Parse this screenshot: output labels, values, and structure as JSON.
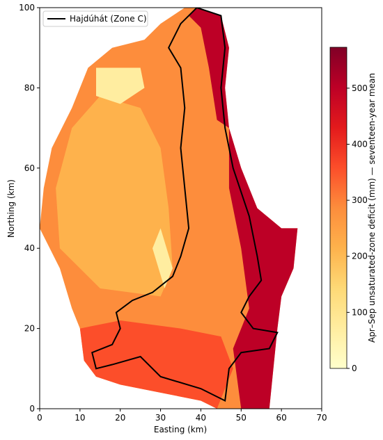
{
  "chart_data": {
    "type": "heatmap",
    "xlabel": "Easting (km)",
    "ylabel": "Northing (km)",
    "xlim": [
      0,
      70
    ],
    "ylim": [
      0,
      100
    ],
    "xticks": [
      0,
      10,
      20,
      30,
      40,
      50,
      60,
      70
    ],
    "yticks": [
      0,
      20,
      40,
      60,
      80,
      100
    ],
    "colorbar_label": "Apr–Sep unsaturated-zone deficit (mm) — seventeen-year mean",
    "clim": [
      0,
      573
    ],
    "cticks": [
      0,
      100,
      200,
      300,
      400,
      500
    ],
    "colormap": [
      "#ffffcc",
      "#ffeda0",
      "#fed976",
      "#feb24c",
      "#fd8d3c",
      "#fc4e2a",
      "#e31a1c",
      "#bd0026",
      "#800026"
    ],
    "legend": "Hajdúhát (Zone C)",
    "legend_corner": "upper left",
    "outline_color": "#000000"
  }
}
